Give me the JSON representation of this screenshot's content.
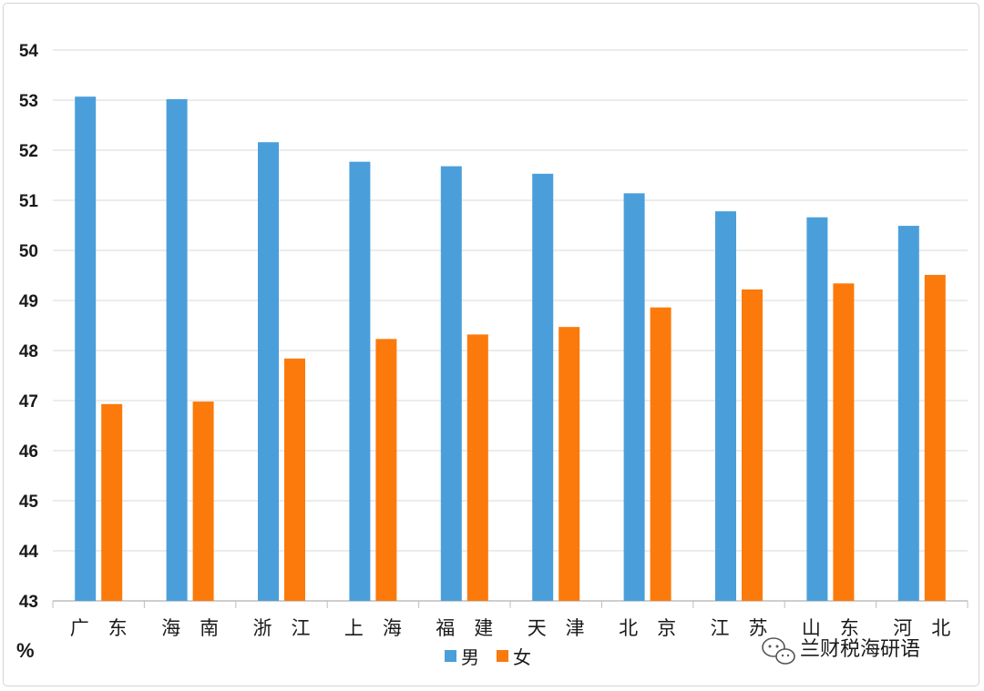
{
  "chart_data": {
    "type": "bar",
    "title": "",
    "xlabel": "",
    "ylabel": "%",
    "ylim": [
      43,
      54
    ],
    "yticks": [
      43,
      44,
      45,
      46,
      47,
      48,
      49,
      50,
      51,
      52,
      53,
      54
    ],
    "grid": true,
    "legend_position": "bottom-center",
    "categories": [
      "广　东",
      "海　南",
      "浙　江",
      "上　海",
      "福　建",
      "天　津",
      "北　京",
      "江　苏",
      "山　东",
      "河　北"
    ],
    "series": [
      {
        "name": "男",
        "color": "#4a9fdb",
        "values": [
          53.07,
          53.02,
          52.16,
          51.77,
          51.68,
          51.53,
          51.14,
          50.78,
          50.66,
          50.49
        ]
      },
      {
        "name": "女",
        "color": "#fb7a0b",
        "values": [
          46.93,
          46.98,
          47.84,
          48.23,
          48.32,
          48.47,
          48.86,
          49.22,
          49.34,
          49.51
        ]
      }
    ]
  },
  "watermark": {
    "text": "兰财税海研语",
    "icon": "wechat-icon"
  }
}
